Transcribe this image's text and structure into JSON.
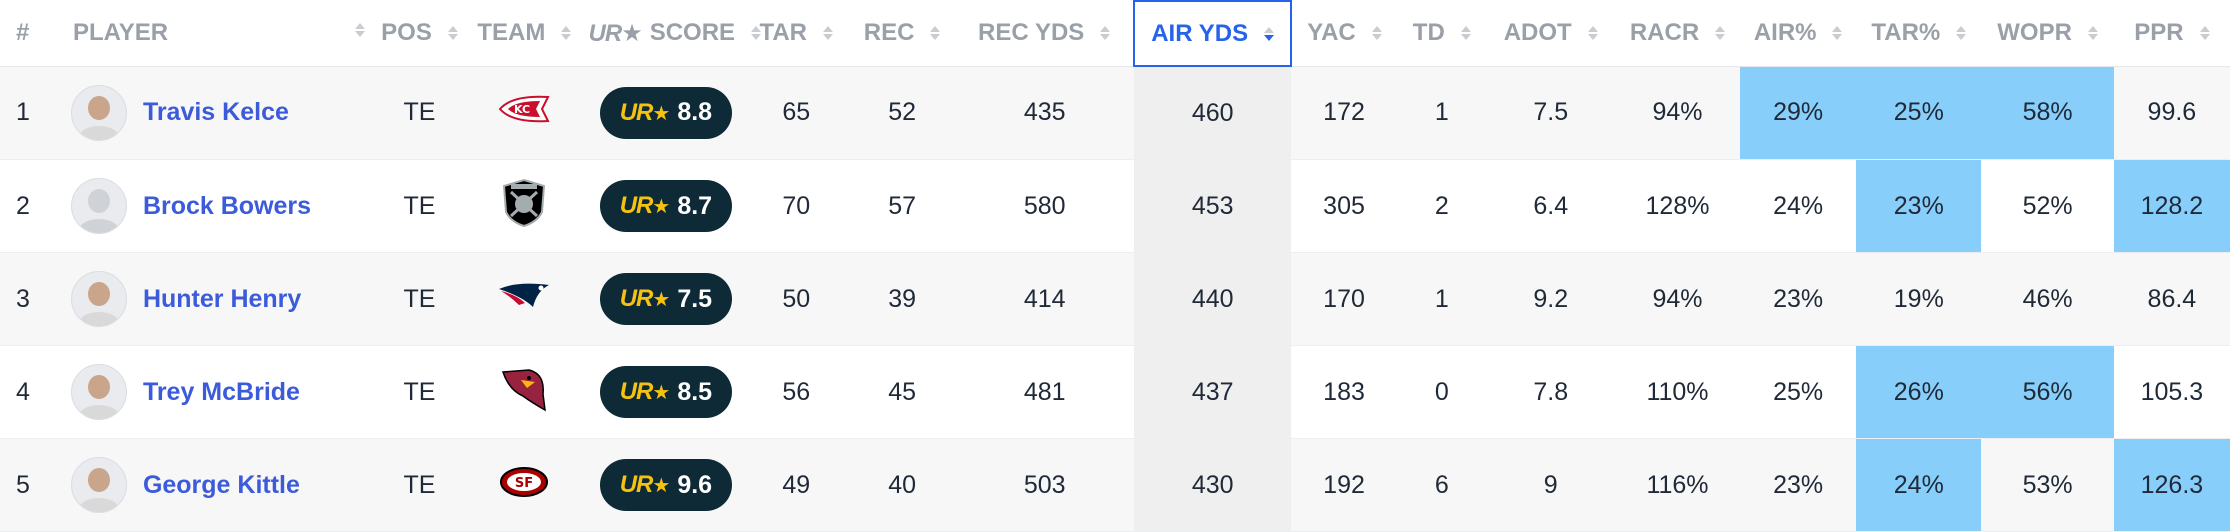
{
  "columns": {
    "rank": "#",
    "player": "PLAYER",
    "pos": "POS",
    "team": "TEAM",
    "score_brand": "UR",
    "score": "SCORE",
    "tar": "TAR",
    "rec": "REC",
    "rec_yds": "REC YDS",
    "air_yds": "AIR YDS",
    "yac": "YAC",
    "td": "TD",
    "adot": "ADOT",
    "racr": "RACR",
    "air_pct": "AIR%",
    "tar_pct": "TAR%",
    "wopr": "WOPR",
    "ppr": "PPR"
  },
  "sort": {
    "column": "air_yds",
    "direction": "desc"
  },
  "colors": {
    "highlight": "#87cefa",
    "link": "#3b5bdb",
    "pill": "#0d2a36",
    "brand": "#f5c211",
    "active_sort": "#2563eb"
  },
  "rows": [
    {
      "rank": "1",
      "name": "Travis Kelce",
      "pos": "TE",
      "team_icon": "chiefs-logo-icon",
      "score_brand": "UR",
      "score": "8.8",
      "tar": "65",
      "rec": "52",
      "rec_yds": "435",
      "air_yds": "460",
      "yac": "172",
      "td": "1",
      "adot": "7.5",
      "racr": "94%",
      "air_pct": "29%",
      "tar_pct": "25%",
      "wopr": "58%",
      "ppr": "99.6",
      "highlight": [
        "air_pct",
        "tar_pct",
        "wopr"
      ]
    },
    {
      "rank": "2",
      "name": "Brock Bowers",
      "pos": "TE",
      "team_icon": "raiders-logo-icon",
      "score_brand": "UR",
      "score": "8.7",
      "tar": "70",
      "rec": "57",
      "rec_yds": "580",
      "air_yds": "453",
      "yac": "305",
      "td": "2",
      "adot": "6.4",
      "racr": "128%",
      "air_pct": "24%",
      "tar_pct": "23%",
      "wopr": "52%",
      "ppr": "128.2",
      "highlight": [
        "tar_pct",
        "ppr"
      ]
    },
    {
      "rank": "3",
      "name": "Hunter Henry",
      "pos": "TE",
      "team_icon": "patriots-logo-icon",
      "score_brand": "UR",
      "score": "7.5",
      "tar": "50",
      "rec": "39",
      "rec_yds": "414",
      "air_yds": "440",
      "yac": "170",
      "td": "1",
      "adot": "9.2",
      "racr": "94%",
      "air_pct": "23%",
      "tar_pct": "19%",
      "wopr": "46%",
      "ppr": "86.4",
      "highlight": []
    },
    {
      "rank": "4",
      "name": "Trey McBride",
      "pos": "TE",
      "team_icon": "cardinals-logo-icon",
      "score_brand": "UR",
      "score": "8.5",
      "tar": "56",
      "rec": "45",
      "rec_yds": "481",
      "air_yds": "437",
      "yac": "183",
      "td": "0",
      "adot": "7.8",
      "racr": "110%",
      "air_pct": "25%",
      "tar_pct": "26%",
      "wopr": "56%",
      "ppr": "105.3",
      "highlight": [
        "tar_pct",
        "wopr"
      ]
    },
    {
      "rank": "5",
      "name": "George Kittle",
      "pos": "TE",
      "team_icon": "49ers-logo-icon",
      "score_brand": "UR",
      "score": "9.6",
      "tar": "49",
      "rec": "40",
      "rec_yds": "503",
      "air_yds": "430",
      "yac": "192",
      "td": "6",
      "adot": "9",
      "racr": "116%",
      "air_pct": "23%",
      "tar_pct": "24%",
      "wopr": "53%",
      "ppr": "126.3",
      "highlight": [
        "tar_pct",
        "ppr"
      ]
    }
  ]
}
